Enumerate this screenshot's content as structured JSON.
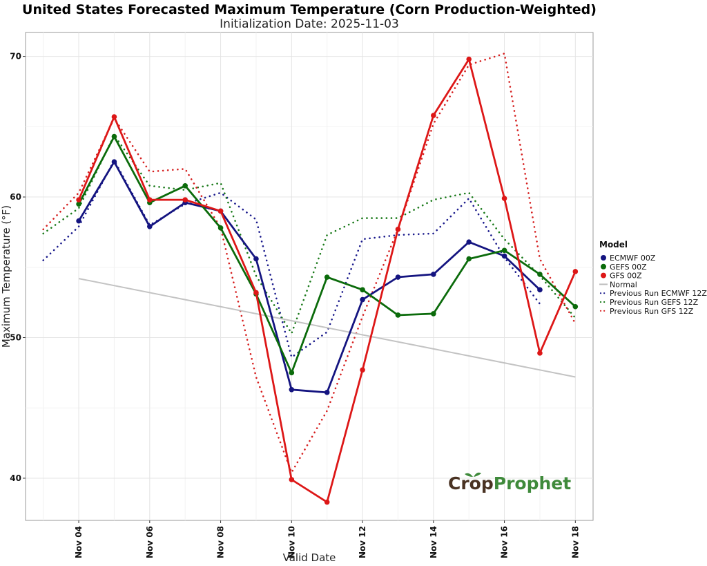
{
  "chart_data": {
    "type": "line",
    "title": "United States Forecasted Maximum Temperature (Corn Production-Weighted)",
    "subtitle": "Initialization Date: 2025-11-03",
    "xlabel": "Valid Date",
    "ylabel": "Maximum Temperature (°F)",
    "xlim": [
      2.5,
      18.5
    ],
    "ylim": [
      37,
      71.7
    ],
    "y_ticks": [
      40,
      50,
      60,
      70
    ],
    "x_ticks": [
      {
        "day": 4,
        "label": "Nov 04"
      },
      {
        "day": 6,
        "label": "Nov 06"
      },
      {
        "day": 8,
        "label": "Nov 08"
      },
      {
        "day": 10,
        "label": "Nov 10"
      },
      {
        "day": 12,
        "label": "Nov 12"
      },
      {
        "day": 14,
        "label": "Nov 14"
      },
      {
        "day": 16,
        "label": "Nov 16"
      },
      {
        "day": 18,
        "label": "Nov 18"
      }
    ],
    "grid": true,
    "legend_position": "right",
    "legend_title": "Model",
    "series": [
      {
        "name": "Previous Run ECMWF 12Z",
        "color": "#1a1a8c",
        "style": "dotted",
        "x": [
          3,
          4,
          5,
          6,
          7,
          8,
          9,
          10,
          11,
          12,
          13,
          14,
          15,
          16,
          17
        ],
        "values": [
          55.5,
          57.9,
          62.6,
          58.0,
          59.5,
          60.3,
          58.4,
          48.6,
          50.4,
          57.0,
          57.3,
          57.4,
          59.9,
          55.7,
          52.4
        ]
      },
      {
        "name": "Previous Run GEFS 12Z",
        "color": "#1a7a1a",
        "style": "dotted",
        "x": [
          3,
          4,
          5,
          6,
          7,
          8,
          9,
          10,
          11,
          12,
          13,
          14,
          15,
          16,
          17,
          18
        ],
        "values": [
          57.4,
          59.2,
          64.4,
          60.8,
          60.5,
          61.0,
          54.4,
          50.3,
          57.3,
          58.5,
          58.5,
          59.8,
          60.3,
          57.0,
          54.4,
          51.4
        ]
      },
      {
        "name": "Previous Run GFS 12Z",
        "color": "#d62020",
        "style": "dotted",
        "x": [
          3,
          4,
          5,
          6,
          7,
          8,
          9,
          10,
          11,
          12,
          13,
          14,
          15,
          16,
          17,
          18
        ],
        "values": [
          57.7,
          60.3,
          65.6,
          61.8,
          62.0,
          57.8,
          47.2,
          40.4,
          44.8,
          51.5,
          57.7,
          65.2,
          69.4,
          70.2,
          55.6,
          51.0
        ]
      },
      {
        "name": "Normal",
        "color": "#bdbdbd",
        "style": "solid-thin",
        "x": [
          4,
          18
        ],
        "values": [
          54.2,
          47.2
        ]
      },
      {
        "name": "ECMWF 00Z",
        "color": "#141480",
        "style": "solid",
        "x": [
          4,
          5,
          6,
          7,
          8,
          9,
          10,
          11,
          12,
          13,
          14,
          15,
          16,
          17
        ],
        "values": [
          58.3,
          62.5,
          57.9,
          59.6,
          59.0,
          55.6,
          46.3,
          46.1,
          52.7,
          54.3,
          54.5,
          56.8,
          55.8,
          53.4
        ]
      },
      {
        "name": "GEFS 00Z",
        "color": "#0b6b0b",
        "style": "solid",
        "x": [
          4,
          5,
          6,
          7,
          8,
          9,
          10,
          11,
          12,
          13,
          14,
          15,
          16,
          17,
          18
        ],
        "values": [
          59.5,
          64.3,
          59.6,
          60.8,
          57.8,
          53.1,
          47.5,
          54.3,
          53.4,
          51.6,
          51.7,
          55.6,
          56.2,
          54.5,
          52.2
        ]
      },
      {
        "name": "GFS 00Z",
        "color": "#dd1717",
        "style": "solid",
        "x": [
          4,
          5,
          6,
          7,
          8,
          9,
          10,
          11,
          12,
          13,
          14,
          15,
          16,
          17,
          18
        ],
        "values": [
          59.8,
          65.7,
          59.8,
          59.8,
          59.0,
          53.2,
          39.9,
          38.3,
          47.7,
          57.7,
          65.8,
          69.8,
          59.9,
          48.9,
          54.7
        ]
      }
    ],
    "legend_order": [
      "ECMWF 00Z",
      "GEFS 00Z",
      "GFS 00Z",
      "Normal",
      "Previous Run ECMWF 12Z",
      "Previous Run GEFS 12Z",
      "Previous Run GFS 12Z"
    ]
  },
  "logo": {
    "part1": "Crop",
    "part2": "Prophet"
  }
}
